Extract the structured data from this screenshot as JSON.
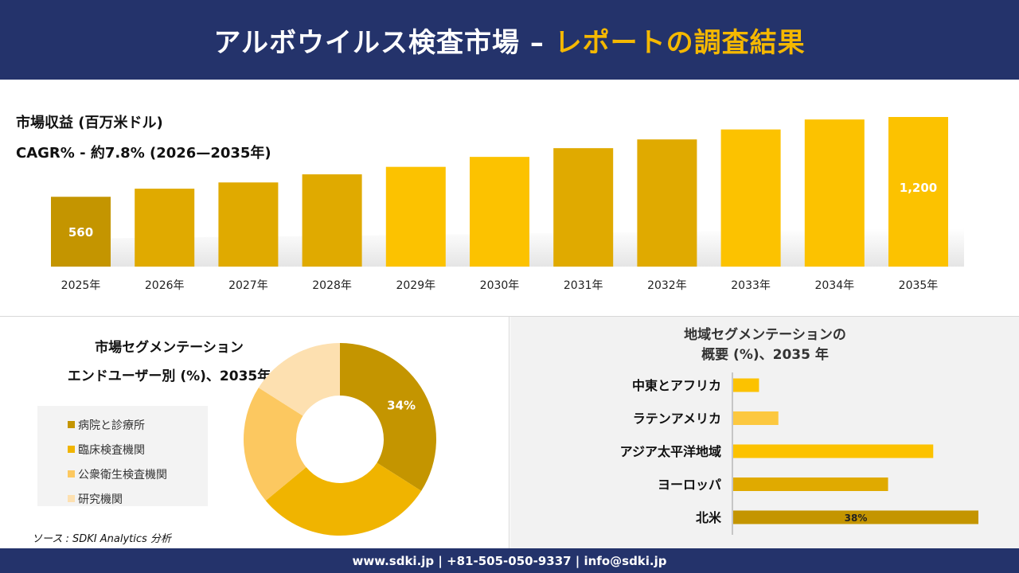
{
  "header": {
    "title_main": "アルボウイルス検査市場 –",
    "title_accent": "レポートの調査結果"
  },
  "revenue": {
    "label": "市場収益 (百万米ドル)",
    "cagr": "CAGR% - 約7.8% (2026—2035年)"
  },
  "segment": {
    "title_line1": "市場セグメンテーション",
    "title_line2": "エンドユーザー別 (%)、2035年"
  },
  "region": {
    "title_line1": "地域セグメンテーションの",
    "title_line2": "概要 (%)、2035 年"
  },
  "source": "ソース : SDKI Analytics 分析",
  "footer": "www.sdki.jp | +81-505-050-9337 | info@sdki.jp",
  "colors": {
    "header_bg": "#24336b",
    "accent": "#f5b800",
    "bar_gold": "#e0aa00",
    "bar_dark": "#c49500",
    "bar_bright": "#fcc200"
  },
  "chart_data": [
    {
      "type": "bar",
      "categories": [
        "2025年",
        "2026年",
        "2027年",
        "2028年",
        "2029年",
        "2030年",
        "2031年",
        "2032年",
        "2033年",
        "2034年",
        "2035年"
      ],
      "values": [
        560,
        625,
        675,
        740,
        800,
        880,
        950,
        1020,
        1100,
        1180,
        1200
      ],
      "data_labels": [
        "560",
        "",
        "",
        "",
        "",
        "",
        "",
        "",
        "",
        "",
        "1,200"
      ],
      "ylim": [
        0,
        1200
      ],
      "grid": false
    },
    {
      "type": "pie",
      "categories": [
        "病院と診療所",
        "臨床検査機関",
        "公衆衛生検査機関",
        "研究機関"
      ],
      "values": [
        34,
        30,
        20,
        16
      ],
      "data_labels": [
        "34%",
        "",
        "",
        ""
      ],
      "colors": [
        "#c49500",
        "#f0b400",
        "#fcc860",
        "#fde0b0"
      ],
      "legend": "left"
    },
    {
      "type": "bar",
      "orientation": "horizontal",
      "categories": [
        "中東とアフリカ",
        "ラテンアメリカ",
        "アジア太平洋地域",
        "ヨーロッパ",
        "北米"
      ],
      "values": [
        4,
        7,
        31,
        24,
        38
      ],
      "data_labels": [
        "",
        "",
        "",
        "",
        "38%"
      ],
      "colors": [
        "#fcc200",
        "#fcc840",
        "#fcc200",
        "#e0aa00",
        "#c49500"
      ],
      "xlim": [
        0,
        38
      ]
    }
  ]
}
